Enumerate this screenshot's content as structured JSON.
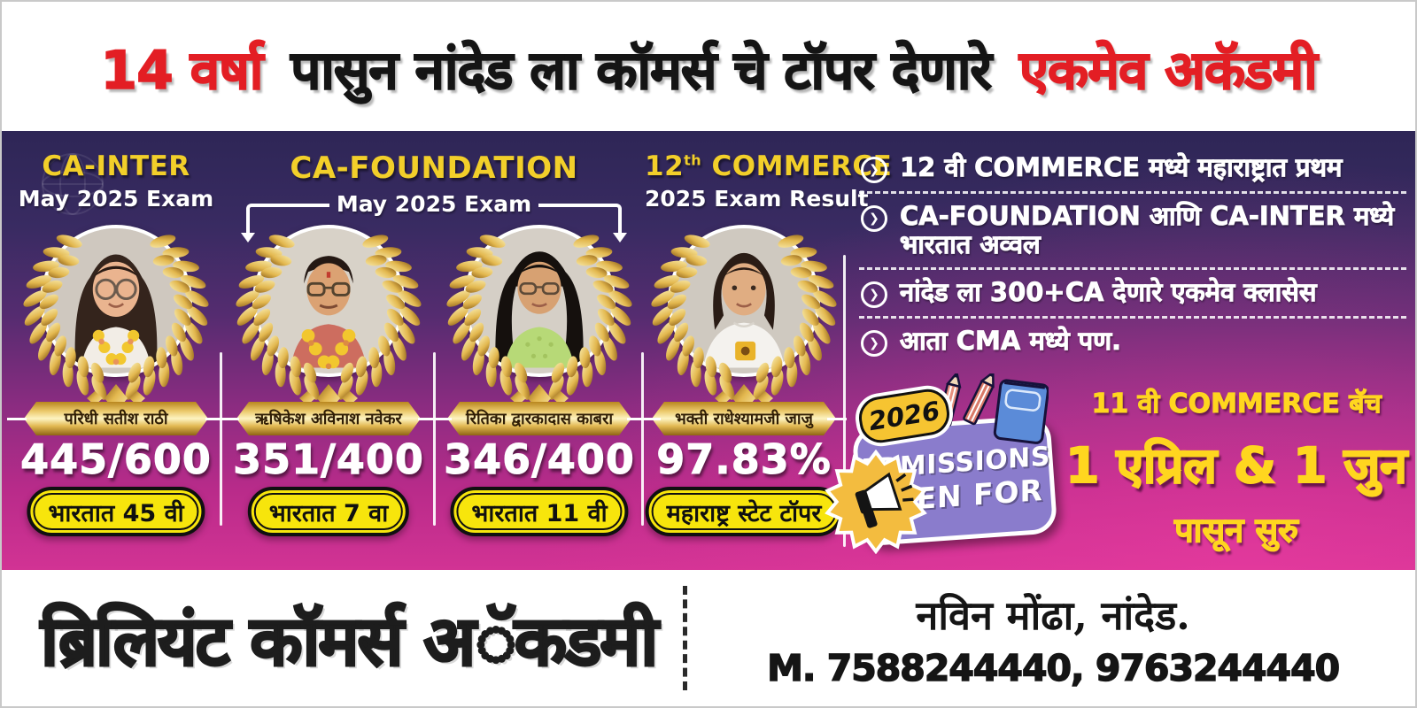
{
  "poster": {
    "headline": {
      "part1": "14 वर्षा",
      "part2": "पासुन नांदेड ला कॉमर्स चे टॉपर देणारे",
      "part3": "एकमेव अकॅडमी"
    },
    "cards": [
      {
        "exam_title": "CA-INTER",
        "exam_subtitle": "May 2025 Exam",
        "student_name": "परिधी सतीश राठी",
        "score": "445/600",
        "rank_badge": "भारतात 45 वी",
        "photo": "girl-glasses-garland"
      },
      {
        "student_name": "ऋषिकेश अविनाश नवेकर",
        "score": "351/400",
        "rank_badge": "भारतात 7 वा",
        "photo": "boy-glasses-garland"
      },
      {
        "student_name": "रितिका द्वारकादास काबरा",
        "score": "346/400",
        "rank_badge": "भारतात 11 वी",
        "photo": "girl-long-hair-green"
      },
      {
        "exam_title_number": "12",
        "exam_title_sup": "th",
        "exam_title_word": " COMMERCE",
        "exam_subtitle": "2025 Exam Result",
        "student_name": "भक्ती राधेश्यामजी जाजु",
        "score": "97.83%",
        "rank_badge": "महाराष्ट्र स्टेट टॉपर",
        "photo": "girl-white-tshirt"
      }
    ],
    "foundation_group": {
      "title": "CA-FOUNDATION",
      "subtitle": "May 2025 Exam"
    },
    "highlights": [
      {
        "text": "12 वी COMMERCE मध्ये महाराष्ट्रात प्रथम"
      },
      {
        "text": "CA-FOUNDATION आणि CA-INTER मध्ये भारतात अव्वल"
      },
      {
        "text": "नांदेड ला 300+CA देणारे एकमेव क्लासेस"
      },
      {
        "text": "आता CMA मध्ये पण."
      }
    ],
    "bullet_glyph": "❯",
    "admissions_sticker": {
      "year": "2026",
      "line1": "ADMISSIONS",
      "line2": "OPEN FOR"
    },
    "batch_info": {
      "line1": "11 वी COMMERCE बॅच",
      "line2": "1 एप्रिल & 1 जुन",
      "line3": "पासून सुरु"
    },
    "footer": {
      "academy_name": "ब्रिलियंट कॉमर्स अॅकडमी",
      "address": "नविन मोंढा, नांदेड.",
      "phone": "M. 7588244440, 9763244440"
    },
    "colors": {
      "accent_red": "#e31e24",
      "title_yellow": "#f2cf2a",
      "badge_yellow": "#f7e50c",
      "panel_top": "#2e2656",
      "panel_bottom": "#d23394",
      "sticker_purple": "#8a7ccc",
      "star_yellow": "#f3bc3f",
      "schedule_yellow": "#ffd61f"
    }
  }
}
